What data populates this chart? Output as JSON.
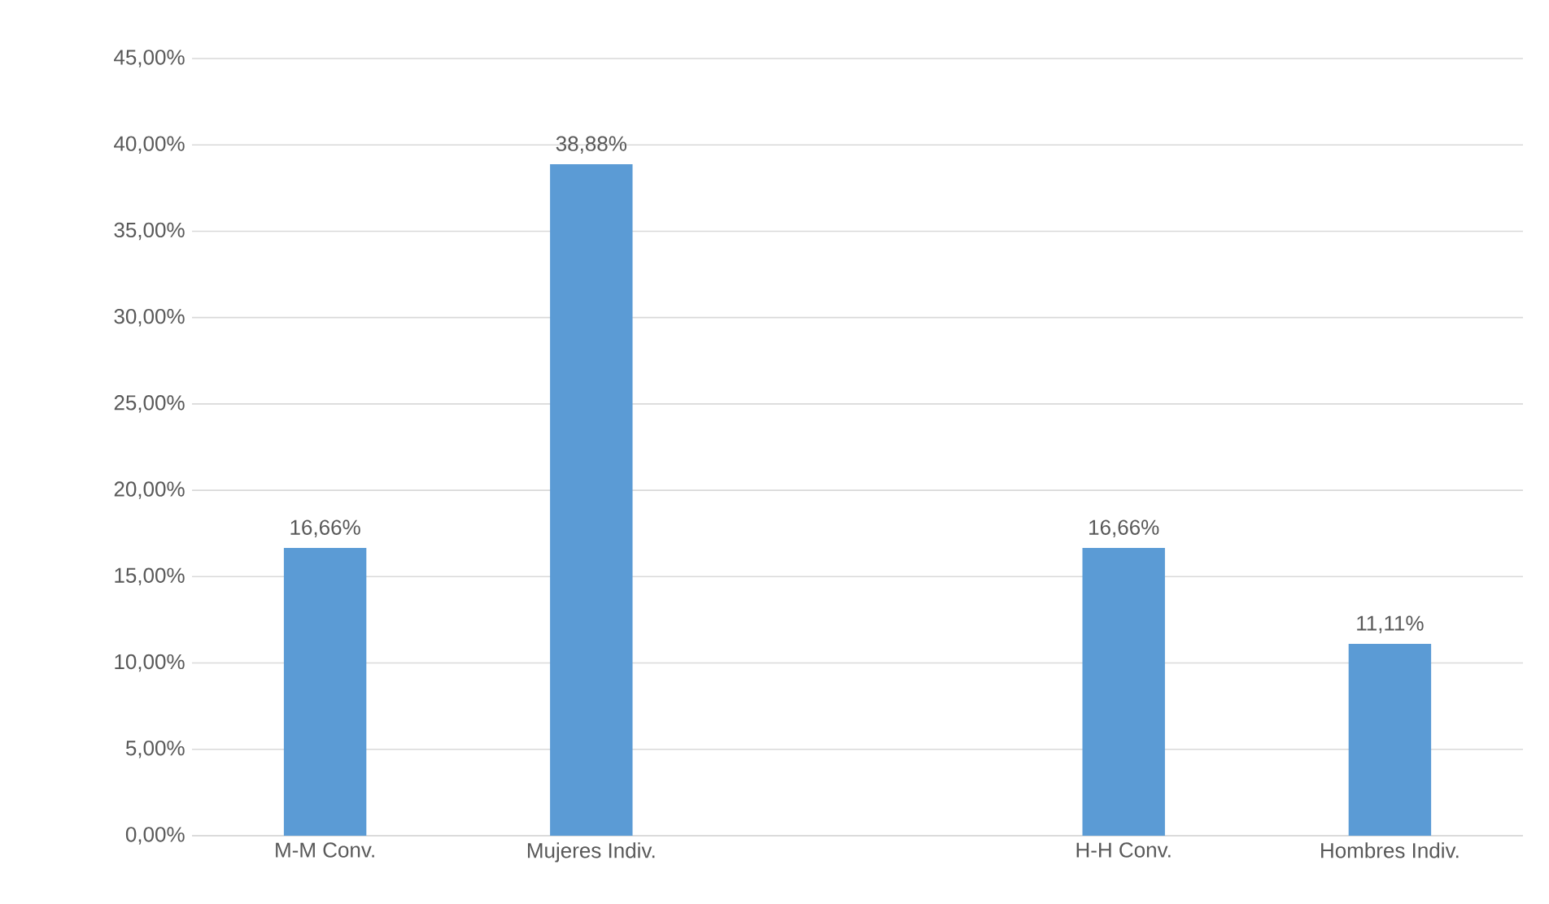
{
  "chart_data": {
    "type": "bar",
    "categories": [
      "M-M Conv.",
      "Mujeres Indiv.",
      null,
      "H-H Conv.",
      "Hombres Indiv."
    ],
    "values": [
      16.66,
      38.88,
      null,
      16.66,
      11.11
    ],
    "value_labels": [
      "16,66%",
      "38,88%",
      null,
      "16,66%",
      "11,11%"
    ],
    "color": "#5b9bd5",
    "ylim": [
      0,
      45
    ],
    "yticks": [
      {
        "value": 0,
        "label": "0,00%"
      },
      {
        "value": 5,
        "label": "5,00%"
      },
      {
        "value": 10,
        "label": "10,00%"
      },
      {
        "value": 15,
        "label": "15,00%"
      },
      {
        "value": 20,
        "label": "20,00%"
      },
      {
        "value": 25,
        "label": "25,00%"
      },
      {
        "value": 30,
        "label": "30,00%"
      },
      {
        "value": 35,
        "label": "35,00%"
      },
      {
        "value": 40,
        "label": "40,00%"
      },
      {
        "value": 45,
        "label": "45,00%"
      }
    ],
    "grid": "y"
  }
}
